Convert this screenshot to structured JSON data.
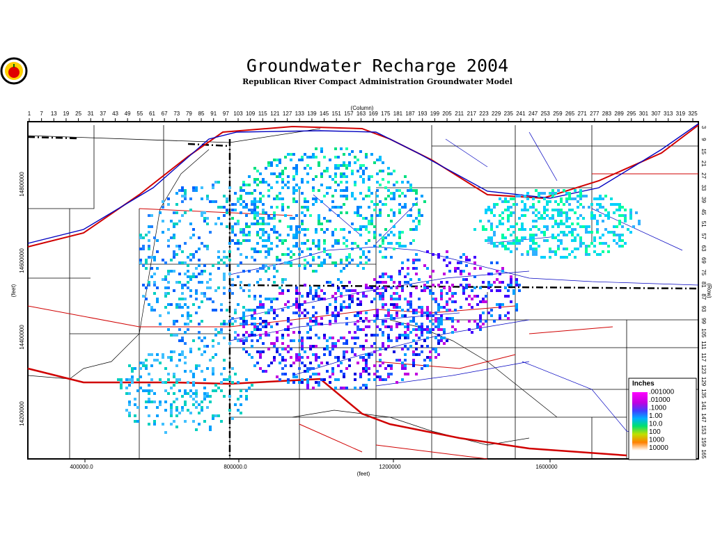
{
  "header": {
    "title": "Groundwater Recharge 2004",
    "subtitle": "Republican River Compact Administration Groundwater Model"
  },
  "column_axis": {
    "label": "(Column)",
    "ticks": [
      "1",
      "7",
      "13",
      "19",
      "25",
      "31",
      "37",
      "43",
      "49",
      "55",
      "61",
      "67",
      "73",
      "79",
      "85",
      "91",
      "97",
      "103",
      "109",
      "115",
      "121",
      "127",
      "133",
      "139",
      "145",
      "151",
      "157",
      "163",
      "169",
      "175",
      "181",
      "187",
      "193",
      "199",
      "205",
      "211",
      "217",
      "223",
      "229",
      "235",
      "241",
      "247",
      "253",
      "259",
      "265",
      "271",
      "277",
      "283",
      "289",
      "295",
      "301",
      "307",
      "313",
      "319",
      "325"
    ]
  },
  "row_axis": {
    "label": "(Row)",
    "ticks": [
      "3",
      "9",
      "15",
      "21",
      "27",
      "33",
      "39",
      "45",
      "51",
      "57",
      "63",
      "69",
      "75",
      "81",
      "87",
      "93",
      "99",
      "105",
      "111",
      "117",
      "123",
      "129",
      "135",
      "141",
      "147",
      "153",
      "159",
      "165"
    ]
  },
  "x_axis": {
    "label": "(feet)",
    "ticks": [
      "400000.0",
      "800000.0",
      "1200000",
      "1600000"
    ]
  },
  "y_axis": {
    "label": "(feet)",
    "ticks": [
      "14800000",
      "14600000",
      "14400000",
      "14200000"
    ]
  },
  "legend": {
    "title": "Inches",
    "items": [
      ".001000",
      ".01000",
      ".1000",
      "1.00",
      "10.0",
      "100",
      "1000",
      "10000"
    ]
  }
}
